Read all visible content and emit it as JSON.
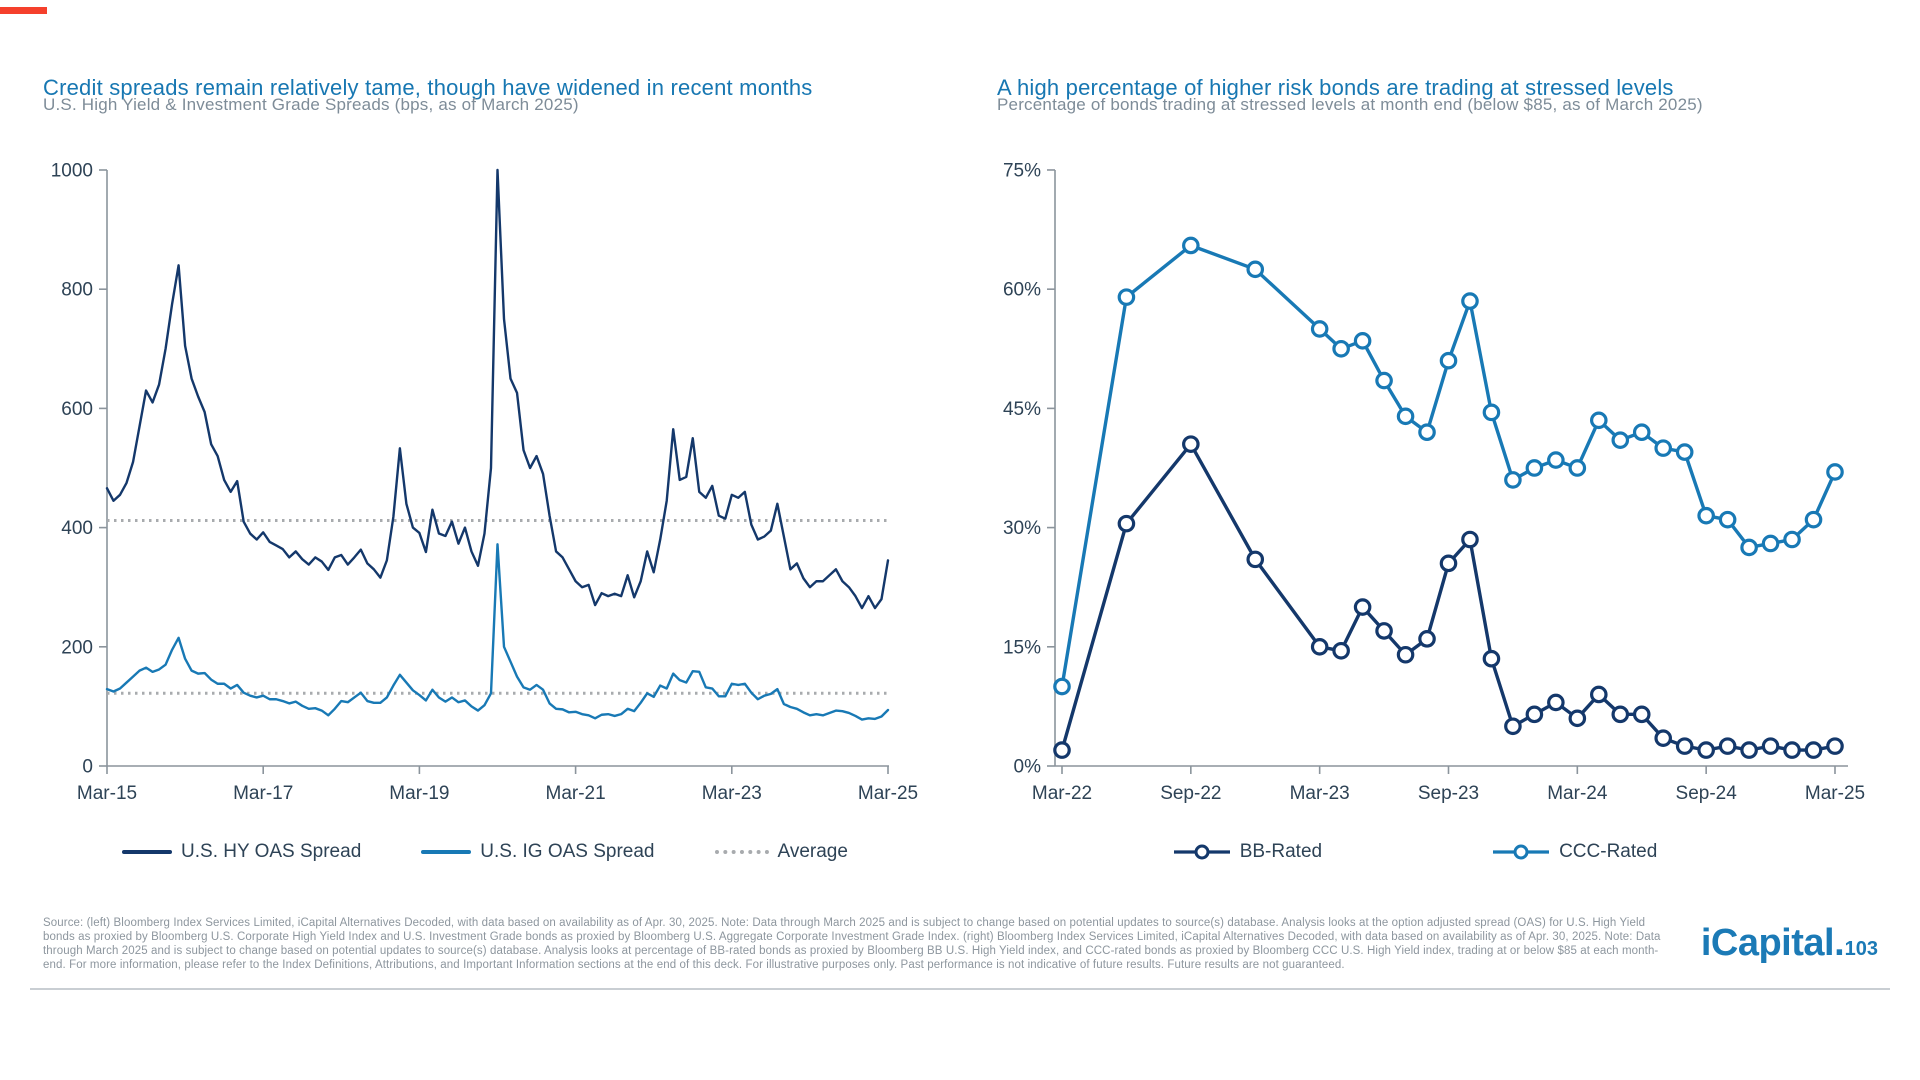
{
  "page": {
    "accent_color": "#F5402C",
    "rule_color": "#C9CED3",
    "background": "#FFFFFF"
  },
  "chart_data": [
    {
      "id": "credit-spreads",
      "type": "line",
      "title": "Credit spreads remain relatively tame, though have widened in recent months",
      "subtitle": "U.S. High Yield & Investment Grade Spreads (bps, as of March 2025)",
      "x_start": "Mar-2015",
      "x_frequency": "monthly",
      "xlabel": "",
      "ylabel": "bps",
      "ylim": [
        0,
        1000
      ],
      "grid": false,
      "legend_position": "bottom",
      "xtick_labels": [
        "Mar-15",
        "Mar-17",
        "Mar-19",
        "Mar-21",
        "Mar-23",
        "Mar-25"
      ],
      "xtick_months": [
        0,
        24,
        48,
        72,
        96,
        120
      ],
      "ytick_labels": [
        "0",
        "200",
        "400",
        "600",
        "800",
        "1000"
      ],
      "ytick_values": [
        0,
        200,
        400,
        600,
        800,
        1000
      ],
      "average_label": "Average",
      "average_color": "#A8ABAE",
      "series": [
        {
          "name": "U.S. HY OAS Spread",
          "color": "#14386B",
          "average": 412,
          "values": [
            466,
            445,
            455,
            475,
            510,
            570,
            630,
            610,
            640,
            700,
            775,
            840,
            705,
            650,
            620,
            594,
            540,
            520,
            480,
            460,
            478,
            410,
            390,
            380,
            392,
            376,
            370,
            364,
            350,
            360,
            347,
            338,
            350,
            343,
            329,
            350,
            354,
            338,
            350,
            363,
            340,
            330,
            316,
            345,
            418,
            533,
            440,
            400,
            391,
            359,
            430,
            390,
            386,
            410,
            373,
            400,
            360,
            336,
            390,
            500,
            1000,
            750,
            650,
            626,
            530,
            500,
            520,
            490,
            420,
            360,
            350,
            330,
            310,
            300,
            304,
            270,
            290,
            285,
            289,
            285,
            320,
            283,
            310,
            360,
            325,
            380,
            445,
            565,
            480,
            485,
            550,
            460,
            450,
            470,
            420,
            415,
            455,
            450,
            460,
            405,
            380,
            385,
            395,
            440,
            385,
            330,
            340,
            315,
            300,
            310,
            310,
            320,
            330,
            310,
            300,
            285,
            265,
            285,
            265,
            280,
            345
          ]
        },
        {
          "name": "U.S. IG OAS Spread",
          "color": "#1879B5",
          "average": 122,
          "values": [
            129,
            125,
            130,
            140,
            150,
            160,
            165,
            158,
            162,
            170,
            195,
            215,
            180,
            160,
            155,
            156,
            145,
            138,
            138,
            130,
            136,
            123,
            118,
            115,
            118,
            112,
            112,
            109,
            105,
            108,
            101,
            96,
            97,
            93,
            85,
            96,
            109,
            107,
            115,
            123,
            109,
            106,
            106,
            115,
            135,
            153,
            140,
            127,
            119,
            110,
            128,
            115,
            108,
            115,
            107,
            110,
            100,
            93,
            102,
            122,
            372,
            200,
            175,
            150,
            132,
            128,
            136,
            128,
            105,
            96,
            95,
            90,
            91,
            87,
            85,
            80,
            86,
            87,
            84,
            87,
            96,
            92,
            106,
            122,
            116,
            135,
            130,
            155,
            144,
            140,
            159,
            158,
            132,
            130,
            117,
            117,
            138,
            136,
            138,
            123,
            112,
            118,
            121,
            129,
            104,
            99,
            96,
            90,
            85,
            87,
            85,
            89,
            93,
            92,
            89,
            84,
            78,
            80,
            79,
            83,
            94
          ]
        }
      ]
    },
    {
      "id": "stressed-bonds",
      "type": "line",
      "markers": true,
      "title": "A high percentage of higher risk bonds are trading at stressed levels",
      "subtitle": "Percentage of bonds trading at stressed levels at month end (below $85, as of March 2025)",
      "xlabel": "",
      "ylabel": "percent",
      "ylim": [
        0,
        75
      ],
      "grid": false,
      "legend_position": "bottom",
      "categories": [
        "Mar-22",
        "Jun-22",
        "Sep-22",
        "Dec-22",
        "Mar-23",
        "Apr-23",
        "May-23",
        "Jun-23",
        "Jul-23",
        "Aug-23",
        "Sep-23",
        "Oct-23",
        "Nov-23",
        "Dec-23",
        "Jan-24",
        "Feb-24",
        "Mar-24",
        "Apr-24",
        "May-24",
        "Jun-24",
        "Jul-24",
        "Aug-24",
        "Sep-24",
        "Oct-24",
        "Nov-24",
        "Dec-24",
        "Jan-25",
        "Feb-25",
        "Mar-25"
      ],
      "x_months": [
        0,
        3,
        6,
        9,
        12,
        13,
        14,
        15,
        16,
        17,
        18,
        19,
        20,
        21,
        22,
        23,
        24,
        25,
        26,
        27,
        28,
        29,
        30,
        31,
        32,
        33,
        34,
        35,
        36
      ],
      "xtick_labels": [
        "Mar-22",
        "Sep-22",
        "Mar-23",
        "Sep-23",
        "Mar-24",
        "Sep-24",
        "Mar-25"
      ],
      "xtick_months": [
        0,
        6,
        12,
        18,
        24,
        30,
        36
      ],
      "ytick_labels": [
        "0%",
        "15%",
        "30%",
        "45%",
        "60%",
        "75%"
      ],
      "ytick_values": [
        0,
        15,
        30,
        45,
        60,
        75
      ],
      "series": [
        {
          "name": "BB-Rated",
          "color": "#14386B",
          "values": [
            2,
            30.5,
            40.5,
            26,
            15,
            14.5,
            20,
            17,
            14,
            16,
            25.5,
            28.5,
            13.5,
            5,
            6.5,
            8,
            6,
            9,
            6.5,
            6.5,
            3.5,
            2.5,
            2,
            2.5,
            2,
            2.5,
            2,
            2,
            2.5
          ]
        },
        {
          "name": "CCC-Rated",
          "color": "#1879B5",
          "values": [
            10,
            59,
            65.5,
            62.5,
            55,
            52.5,
            53.5,
            48.5,
            44,
            42,
            51,
            58.5,
            44.5,
            36,
            37.5,
            38.5,
            37.5,
            43.5,
            41,
            42,
            40,
            39.5,
            31.5,
            31,
            27.5,
            28,
            28.5,
            31,
            37
          ]
        }
      ]
    }
  ],
  "footer": {
    "source": "Source: (left) Bloomberg Index Services Limited, iCapital Alternatives Decoded, with data based on availability as of Apr. 30, 2025. Note: Data through March 2025 and is subject to change based on potential updates to source(s) database. Analysis looks at the option adjusted spread (OAS) for U.S. High Yield bonds as proxied by Bloomberg U.S. Corporate High Yield Index and U.S. Investment Grade bonds as proxied by Bloomberg U.S. Aggregate Corporate Investment Grade Index. (right) Bloomberg Index Services Limited, iCapital Alternatives Decoded, with data based on availability as of Apr. 30, 2025. Note: Data through March 2025 and is subject to change based on potential updates to source(s) database. Analysis looks at percentage of BB-rated bonds as proxied by Bloomberg BB U.S. High Yield index, and CCC-rated bonds as proxied by Bloomberg CCC U.S. High Yield index, trading at or below $85 at each month-end. For more information, please refer to the Index Definitions, Attributions, and Important Information sections at the end of this deck. For illustrative purposes only. Past performance is not indicative of future results. Future results are not guaranteed.",
    "logo_name": "iCapital",
    "logo_separator": ".",
    "page_number": "103"
  }
}
